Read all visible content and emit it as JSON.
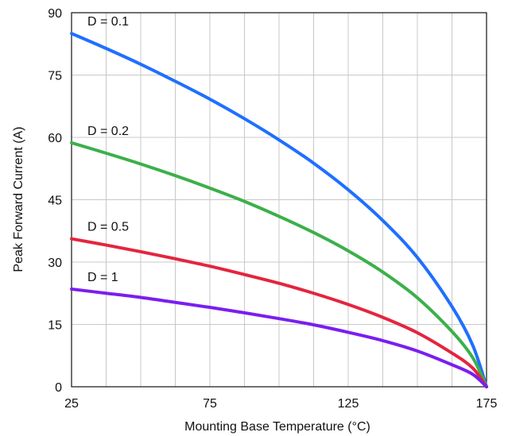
{
  "chart_data": {
    "type": "line",
    "title": "",
    "xlabel": "Mounting Base Temperature (°C)",
    "ylabel": "Peak Forward Current (A)",
    "xlim": [
      25,
      175
    ],
    "ylim": [
      0,
      90
    ],
    "x_ticks": [
      25,
      75,
      125,
      175
    ],
    "y_ticks": [
      0,
      15,
      30,
      45,
      60,
      75,
      90
    ],
    "x_tick_labels": [
      "25",
      "75",
      "125",
      "175"
    ],
    "y_tick_labels": [
      "0",
      "15",
      "30",
      "45",
      "60",
      "75",
      "90"
    ],
    "grid": true,
    "series": [
      {
        "name": "D = 0.1",
        "color": "#1f6fff",
        "x": [
          25,
          37.5,
          50,
          62.5,
          75,
          87.5,
          100,
          112.5,
          125,
          137.5,
          150,
          162.5,
          170,
          175
        ],
        "values": [
          85,
          81.4,
          77.6,
          73.5,
          69.2,
          64.5,
          59.4,
          53.8,
          47.4,
          40.0,
          31.1,
          19.3,
          10.0,
          0
        ]
      },
      {
        "name": "D = 0.2",
        "color": "#3bb04a",
        "x": [
          25,
          37.5,
          50,
          62.5,
          75,
          87.5,
          100,
          112.5,
          125,
          137.5,
          150,
          162.5,
          170,
          175
        ],
        "values": [
          58.7,
          56.2,
          53.6,
          50.8,
          47.8,
          44.6,
          41.0,
          37.1,
          32.7,
          27.6,
          21.4,
          13.3,
          7.0,
          0
        ]
      },
      {
        "name": "D = 0.5",
        "color": "#e4253f",
        "x": [
          25,
          37.5,
          50,
          62.5,
          75,
          87.5,
          100,
          112.5,
          125,
          137.5,
          150,
          162.5,
          170,
          175
        ],
        "values": [
          35.6,
          34.1,
          32.5,
          30.8,
          29.0,
          27.0,
          24.9,
          22.5,
          19.8,
          16.7,
          13.0,
          8.1,
          4.5,
          0
        ]
      },
      {
        "name": "D = 1",
        "color": "#7a1ef0",
        "x": [
          25,
          37.5,
          50,
          62.5,
          75,
          87.5,
          100,
          112.5,
          125,
          137.5,
          150,
          162.5,
          170,
          175
        ],
        "values": [
          23.5,
          22.5,
          21.5,
          20.3,
          19.1,
          17.8,
          16.4,
          14.9,
          13.1,
          11.1,
          8.6,
          5.3,
          3.0,
          0
        ]
      }
    ]
  }
}
